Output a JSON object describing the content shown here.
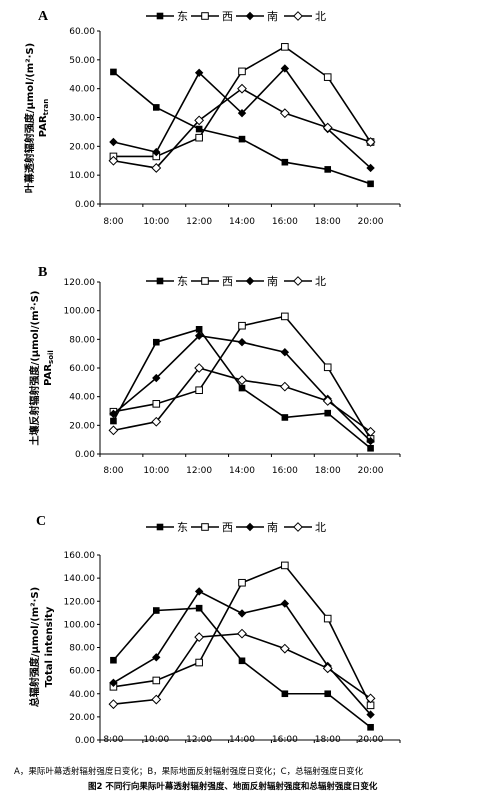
{
  "chart_data": [
    {
      "type": "line",
      "panel": "A",
      "ylabel_cn": "叶幕透射辐射强度/μmol/(m²·S)",
      "ylabel_en": "PAR",
      "ylabel_sub": "tran",
      "categories": [
        "8:00",
        "10:00",
        "12:00",
        "14:00",
        "16:00",
        "18:00",
        "20:00"
      ],
      "yticks": [
        "0.00",
        "10.00",
        "20.00",
        "30.00",
        "40.00",
        "50.00",
        "60.00"
      ],
      "ylim": [
        0,
        60
      ],
      "legend_position": "top",
      "series": [
        {
          "name": "东",
          "marker": "square-filled",
          "values": [
            45.8,
            33.5,
            26.0,
            22.5,
            14.5,
            12.0,
            7.0
          ]
        },
        {
          "name": "西",
          "marker": "square-open",
          "values": [
            16.5,
            16.5,
            23.0,
            46.0,
            54.5,
            44.0,
            21.5
          ]
        },
        {
          "name": "南",
          "marker": "diamond-filled",
          "values": [
            21.5,
            18.0,
            45.5,
            31.5,
            47.0,
            26.0,
            12.5
          ]
        },
        {
          "name": "北",
          "marker": "diamond-open",
          "values": [
            15.0,
            12.5,
            29.0,
            40.0,
            31.5,
            26.5,
            21.5
          ]
        }
      ]
    },
    {
      "type": "line",
      "panel": "B",
      "ylabel_cn": "土壤反射辐射强度/(μmol/(m²·S)",
      "ylabel_en": "PAR",
      "ylabel_sub": "soil",
      "categories": [
        "8:00",
        "10:00",
        "12:00",
        "14:00",
        "16:00",
        "18:00",
        "20:00"
      ],
      "yticks": [
        "0.00",
        "20.00",
        "40.00",
        "60.00",
        "80.00",
        "100.00",
        "120.00"
      ],
      "ylim": [
        0,
        120
      ],
      "legend_position": "top",
      "series": [
        {
          "name": "东",
          "marker": "square-filled",
          "values": [
            23.0,
            78.0,
            87.0,
            46.0,
            25.5,
            28.5,
            4.0
          ]
        },
        {
          "name": "西",
          "marker": "square-open",
          "values": [
            29.5,
            35.0,
            44.5,
            89.5,
            96.0,
            60.5,
            10.5
          ]
        },
        {
          "name": "南",
          "marker": "diamond-filled",
          "values": [
            28.0,
            53.0,
            82.5,
            78.0,
            71.0,
            38.5,
            9.0
          ]
        },
        {
          "name": "北",
          "marker": "diamond-open",
          "values": [
            16.5,
            22.5,
            60.0,
            51.5,
            47.0,
            37.0,
            15.5
          ]
        }
      ]
    },
    {
      "type": "line",
      "panel": "C",
      "ylabel_cn": "总辐射强度/μmol/(m²·S)",
      "ylabel_en": "Total intensity",
      "ylabel_sub": "",
      "categories": [
        "8:00",
        "10:00",
        "12:00",
        "14:00",
        "16:00",
        "18:00",
        "20:00"
      ],
      "yticks": [
        "0.00",
        "20.00",
        "40.00",
        "60.00",
        "80.00",
        "100.00",
        "120.00",
        "140.00",
        "160.00"
      ],
      "ylim": [
        0,
        160
      ],
      "legend_position": "top",
      "series": [
        {
          "name": "东",
          "marker": "square-filled",
          "values": [
            69.0,
            112.0,
            114.0,
            68.5,
            40.0,
            40.0,
            11.0
          ]
        },
        {
          "name": "西",
          "marker": "square-open",
          "values": [
            46.0,
            51.5,
            67.0,
            136.0,
            151.0,
            105.0,
            30.0
          ]
        },
        {
          "name": "南",
          "marker": "diamond-filled",
          "values": [
            49.5,
            71.5,
            128.5,
            109.5,
            118.0,
            64.0,
            22.0
          ]
        },
        {
          "name": "北",
          "marker": "diamond-open",
          "values": [
            31.0,
            35.0,
            89.0,
            92.0,
            79.0,
            62.0,
            36.0
          ]
        }
      ]
    }
  ],
  "caption": {
    "line1": "A，果际叶幕透射辐射强度日变化；B，果际地面反射辐射强度日变化；C，总辐射强度日变化",
    "line2": "图2 不同行向果际叶幕透射辐射强度、地面反射辐射强度和总辐射强度日变化"
  }
}
